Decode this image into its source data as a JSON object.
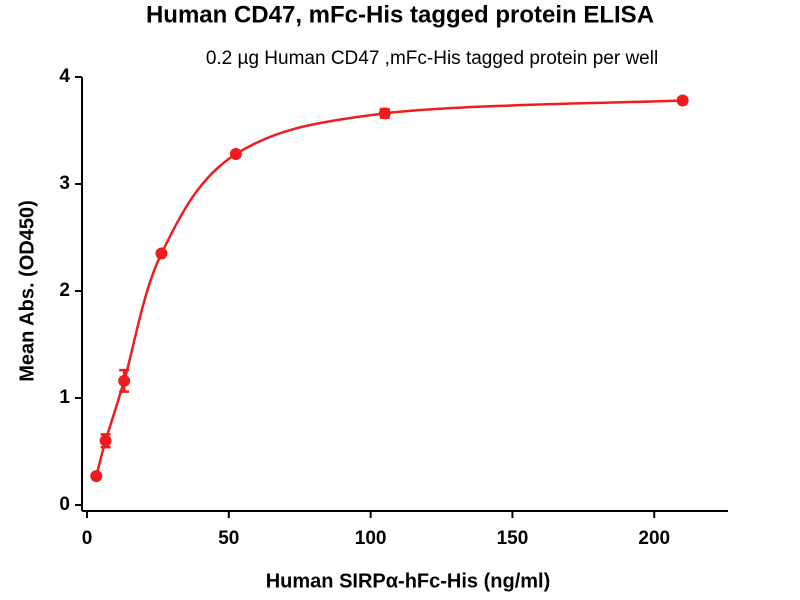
{
  "chart_data": {
    "type": "line",
    "title": "Human CD47, mFc-His tagged  protein ELISA",
    "subtitle": "0.2 µg Human CD47 ,mFc-His tagged protein per well",
    "x_label": "Human SIRPα-hFc-His (ng/ml)",
    "y_label": "Mean Abs. (OD450)",
    "series": [
      {
        "name": "Human SIRPα-hFc-His",
        "color": "#ee1c1c",
        "x": [
          3.28,
          6.56,
          13.1,
          26.25,
          52.5,
          105,
          210
        ],
        "values": [
          0.27,
          0.6,
          1.16,
          2.35,
          3.28,
          3.66,
          3.78
        ],
        "errors": [
          0.02,
          0.06,
          0.1,
          0.02,
          0.02,
          0.04,
          0.02
        ]
      }
    ],
    "xlim": [
      0,
      226
    ],
    "xticks": [
      0,
      50,
      100,
      150,
      200
    ],
    "ylim": [
      0,
      4
    ],
    "yticks": [
      0,
      1,
      2,
      3,
      4
    ]
  }
}
